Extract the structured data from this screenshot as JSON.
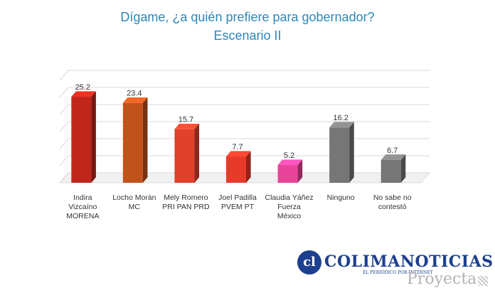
{
  "chart_data": {
    "type": "bar",
    "title": "Dígame, ¿a quién prefiere para gobernador?",
    "subtitle": "Escenario II",
    "categories": [
      "Indira\nVizcaíno\nMORENA",
      "Locho Morán\nMC",
      "Mely Romero\nPRI PAN PRD",
      "Joel Padilla\nPVEM PT",
      "Claudia Yáñez\nFuerza\nMéxico",
      "Ninguno",
      "No sabe no\ncontestó"
    ],
    "values": [
      25.2,
      23.4,
      15.7,
      7.7,
      5.2,
      16.2,
      6.7
    ],
    "data_labels": [
      "25.2",
      "23.4",
      "15.7",
      "7.7",
      "5.2",
      "16.2",
      "6.7"
    ],
    "colors": [
      "#c0261c",
      "#c0531c",
      "#e0402c",
      "#e83a2a",
      "#e8449a",
      "#767676",
      "#767676"
    ],
    "ylim": [
      0,
      30
    ],
    "grid": true,
    "legend": "none"
  },
  "logo": {
    "name": "COLIMANOTICIAS",
    "tagline": "EL PERIÓDICO POR INTERNET",
    "brand": "Proyecta"
  }
}
